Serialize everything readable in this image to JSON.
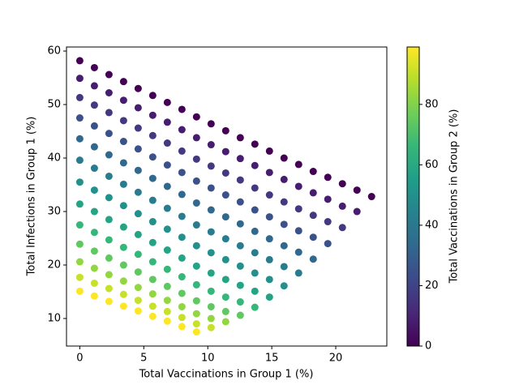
{
  "chart_data": {
    "type": "scatter",
    "xlabel": "Total Vaccinations in Group 1 (%)",
    "ylabel": "Total Infections in Group 1 (%)",
    "colorbar_label": "Total Vaccinations in Group 2 (%)",
    "colormap": "viridis",
    "xlim": [
      -1.04,
      23.99
    ],
    "ylim": [
      4.85,
      60.76
    ],
    "xticks": [
      0,
      5,
      10,
      15,
      20
    ],
    "yticks": [
      10,
      20,
      30,
      40,
      50,
      60
    ],
    "clim": [
      0,
      99
    ],
    "cticks": [
      0,
      20,
      40,
      60,
      80
    ],
    "x": [
      0,
      0,
      0,
      0,
      0,
      0,
      0,
      0,
      0,
      0,
      0,
      0,
      0,
      1.14,
      1.14,
      1.14,
      1.14,
      1.14,
      1.14,
      1.14,
      1.14,
      1.14,
      1.14,
      1.14,
      1.14,
      1.14,
      2.28,
      2.28,
      2.28,
      2.28,
      2.28,
      2.28,
      2.28,
      2.28,
      2.28,
      2.28,
      2.28,
      2.28,
      2.28,
      3.42,
      3.42,
      3.42,
      3.42,
      3.42,
      3.42,
      3.42,
      3.42,
      3.42,
      3.42,
      3.42,
      3.42,
      3.42,
      4.56,
      4.56,
      4.56,
      4.56,
      4.56,
      4.56,
      4.56,
      4.56,
      4.56,
      4.56,
      4.56,
      4.56,
      4.56,
      5.7,
      5.7,
      5.7,
      5.7,
      5.7,
      5.7,
      5.7,
      5.7,
      5.7,
      5.7,
      5.7,
      5.7,
      5.7,
      6.84,
      6.84,
      6.84,
      6.84,
      6.84,
      6.84,
      6.84,
      6.84,
      6.84,
      6.84,
      6.84,
      6.84,
      6.84,
      7.98,
      7.98,
      7.98,
      7.98,
      7.98,
      7.98,
      7.98,
      7.98,
      7.98,
      7.98,
      7.98,
      7.98,
      7.98,
      9.12,
      9.12,
      9.12,
      9.12,
      9.12,
      9.12,
      9.12,
      9.12,
      9.12,
      9.12,
      9.12,
      9.12,
      9.12,
      10.26,
      10.26,
      10.26,
      10.26,
      10.26,
      10.26,
      10.26,
      10.26,
      10.26,
      10.26,
      10.26,
      10.26,
      11.4,
      11.4,
      11.4,
      11.4,
      11.4,
      11.4,
      11.4,
      11.4,
      11.4,
      11.4,
      11.4,
      12.54,
      12.54,
      12.54,
      12.54,
      12.54,
      12.54,
      12.54,
      12.54,
      12.54,
      12.54,
      13.68,
      13.68,
      13.68,
      13.68,
      13.68,
      13.68,
      13.68,
      13.68,
      13.68,
      14.82,
      14.82,
      14.82,
      14.82,
      14.82,
      14.82,
      14.82,
      14.82,
      15.96,
      15.96,
      15.96,
      15.96,
      15.96,
      15.96,
      15.96,
      17.1,
      17.1,
      17.1,
      17.1,
      17.1,
      17.1,
      18.24,
      18.24,
      18.24,
      18.24,
      18.24,
      19.38,
      19.38,
      19.38,
      19.38,
      20.52,
      20.52,
      20.52,
      21.66,
      21.66,
      22.8
    ],
    "y": [
      58.2,
      54.9,
      51.3,
      47.5,
      43.6,
      39.6,
      35.5,
      31.4,
      27.5,
      23.9,
      20.6,
      17.7,
      15.1,
      56.9,
      53.5,
      49.9,
      46.0,
      42.1,
      38.1,
      34.0,
      30.0,
      26.1,
      22.6,
      19.4,
      16.6,
      14.2,
      55.6,
      52.2,
      48.5,
      44.6,
      40.6,
      36.6,
      32.6,
      28.5,
      24.7,
      21.3,
      18.2,
      15.6,
      13.2,
      54.3,
      50.8,
      47.0,
      43.1,
      39.1,
      35.1,
      31.1,
      27.1,
      23.3,
      20.0,
      17.0,
      14.5,
      12.3,
      53.0,
      49.4,
      45.6,
      41.7,
      37.7,
      33.6,
      29.6,
      25.7,
      22.0,
      18.7,
      15.8,
      13.4,
      11.4,
      51.7,
      48.0,
      44.2,
      40.2,
      36.2,
      32.1,
      28.1,
      24.2,
      20.6,
      17.3,
      14.6,
      12.3,
      10.4,
      50.4,
      46.7,
      42.8,
      38.7,
      34.7,
      30.6,
      26.7,
      22.8,
      19.2,
      16.0,
      13.4,
      11.3,
      9.5,
      49.1,
      45.3,
      41.3,
      37.3,
      33.2,
      29.1,
      25.2,
      21.3,
      17.8,
      14.7,
      12.2,
      10.2,
      8.5,
      47.7,
      43.8,
      39.8,
      35.7,
      31.6,
      27.5,
      23.6,
      19.8,
      16.3,
      13.3,
      10.9,
      9.0,
      7.5,
      46.4,
      42.5,
      38.5,
      34.4,
      30.3,
      26.2,
      22.3,
      18.5,
      15.1,
      12.2,
      10.0,
      8.3,
      45.1,
      41.2,
      37.2,
      33.1,
      29.0,
      24.9,
      21.0,
      17.3,
      14.0,
      11.3,
      9.4,
      43.8,
      39.9,
      35.9,
      31.8,
      27.7,
      23.6,
      19.8,
      16.2,
      13.1,
      10.6,
      42.6,
      38.6,
      34.4,
      30.3,
      26.3,
      22.3,
      18.5,
      15.1,
      12.1,
      41.3,
      37.3,
      33.1,
      29.0,
      24.9,
      21.0,
      17.3,
      14.0,
      40.0,
      36.0,
      31.8,
      27.6,
      23.6,
      19.7,
      16.1,
      38.8,
      34.7,
      30.5,
      26.4,
      22.4,
      18.5,
      37.5,
      33.5,
      29.3,
      25.2,
      21.1,
      36.4,
      32.3,
      28.1,
      24.0,
      35.2,
      31.0,
      27.0,
      34.0,
      30.0,
      32.8
    ],
    "c": [
      0,
      8.25,
      16.5,
      24.75,
      33,
      41.25,
      49.5,
      57.75,
      66,
      74.25,
      82.5,
      90.75,
      99,
      0,
      8.25,
      16.5,
      24.75,
      33,
      41.25,
      49.5,
      57.75,
      66,
      74.25,
      82.5,
      90.75,
      99,
      0,
      8.25,
      16.5,
      24.75,
      33,
      41.25,
      49.5,
      57.75,
      66,
      74.25,
      82.5,
      90.75,
      99,
      0,
      8.25,
      16.5,
      24.75,
      33,
      41.25,
      49.5,
      57.75,
      66,
      74.25,
      82.5,
      90.75,
      99,
      0,
      8.25,
      16.5,
      24.75,
      33,
      41.25,
      49.5,
      57.75,
      66,
      74.25,
      82.5,
      90.75,
      99,
      0,
      8.25,
      16.5,
      24.75,
      33,
      41.25,
      49.5,
      57.75,
      66,
      74.25,
      82.5,
      90.75,
      99,
      0,
      8.25,
      16.5,
      24.75,
      33,
      41.25,
      49.5,
      57.75,
      66,
      74.25,
      82.5,
      90.75,
      99,
      0,
      8.25,
      16.5,
      24.75,
      33,
      41.25,
      49.5,
      57.75,
      66,
      74.25,
      82.5,
      90.75,
      99,
      0,
      8.25,
      16.5,
      24.75,
      33,
      41.25,
      49.5,
      57.75,
      66,
      74.25,
      82.5,
      90.75,
      99,
      0,
      8.25,
      16.5,
      24.75,
      33,
      41.25,
      49.5,
      57.75,
      66,
      74.25,
      82.5,
      90.75,
      0,
      8.25,
      16.5,
      24.75,
      33,
      41.25,
      49.5,
      57.75,
      66,
      74.25,
      82.5,
      0,
      8.25,
      16.5,
      24.75,
      33,
      41.25,
      49.5,
      57.75,
      66,
      74.25,
      0,
      8.25,
      16.5,
      24.75,
      33,
      41.25,
      49.5,
      57.75,
      66,
      0,
      8.25,
      16.5,
      24.75,
      33,
      41.25,
      49.5,
      57.75,
      0,
      8.25,
      16.5,
      24.75,
      33,
      41.25,
      49.5,
      0,
      8.25,
      16.5,
      24.75,
      33,
      41.25,
      0,
      8.25,
      16.5,
      24.75,
      33,
      0,
      8.25,
      16.5,
      24.75,
      0,
      8.25,
      16.5,
      0,
      8.25,
      0
    ]
  }
}
